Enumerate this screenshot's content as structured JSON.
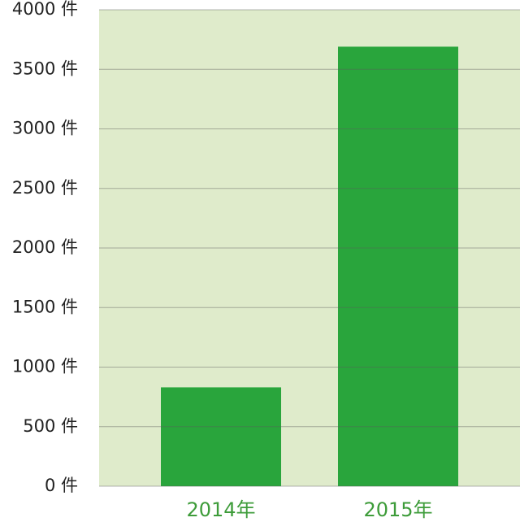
{
  "chart_data": {
    "type": "bar",
    "categories": [
      "2014年",
      "2015年"
    ],
    "values": [
      830,
      3690
    ],
    "color": "#29a53c",
    "ylim": [
      0,
      4000
    ],
    "yticks": [
      {
        "value": 0,
        "label": "0 件"
      },
      {
        "value": 500,
        "label": "500 件"
      },
      {
        "value": 1000,
        "label": "1000 件"
      },
      {
        "value": 1500,
        "label": "1500 件"
      },
      {
        "value": 2000,
        "label": "2000 件"
      },
      {
        "value": 2500,
        "label": "2500 件"
      },
      {
        "value": 3000,
        "label": "3000 件"
      },
      {
        "value": 3500,
        "label": "3500 件"
      },
      {
        "value": 4000,
        "label": "4000 件"
      }
    ],
    "grid": true
  }
}
